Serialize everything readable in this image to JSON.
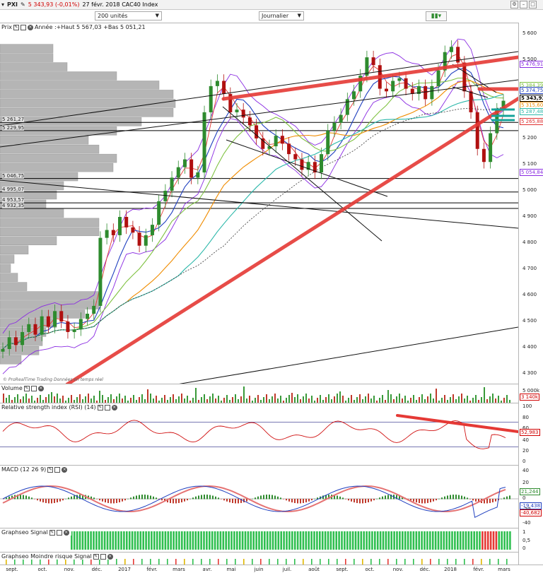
{
  "toolbar": {
    "symbol": "PXI",
    "quote": "5 343,93 (-0,01%)",
    "date_index": "27 févr. 2018 CAC40 Index",
    "units_select": "200 unités",
    "period_select": "Journalier"
  },
  "price_panel": {
    "title": "Prix",
    "year_info": "Année :+Haut 5 567,03 +Bas 5 051,21",
    "credit": "© ProRealTime Trading Données en temps réel"
  },
  "volume_panel": {
    "title": "Volume",
    "ticks": [
      "5 000k"
    ],
    "tag": "3 140k"
  },
  "rsi_panel": {
    "title": "Relative strength index (RSI) (14)",
    "ticks": [
      "100",
      "80",
      "60",
      "40",
      "20",
      "0"
    ],
    "tag": "52,983"
  },
  "macd_panel": {
    "title": "MACD (12 26 9)",
    "ticks": [
      "40",
      "20",
      "0",
      "-20",
      "-40"
    ],
    "tags": [
      "21,244",
      "-19,438",
      "-40,682"
    ]
  },
  "signal_panel": {
    "title": "Graphseo Signal",
    "ticks": [
      "1",
      "0,5",
      "0"
    ]
  },
  "risk_panel": {
    "title": "Graphseo Moindre risque Signal"
  },
  "chart_data": {
    "type": "candlestick",
    "price_axis": {
      "ticks": [
        "5 600",
        "5 500",
        "5 400",
        "5 300",
        "5 200",
        "5 100",
        "5 000",
        "4 900",
        "4 800",
        "4 700",
        "4 600",
        "4 500",
        "4 400",
        "4 300"
      ],
      "ylim": [
        4260,
        5640
      ]
    },
    "x_labels": [
      "sept.",
      "oct.",
      "nov.",
      "déc.",
      "2017",
      "févr.",
      "mars",
      "avr.",
      "mai",
      "juin",
      "juil.",
      "août",
      "sept.",
      "oct.",
      "nov.",
      "déc.",
      "2018",
      "févr.",
      "mars"
    ],
    "horizontal_levels": [
      {
        "label": "5 261,27",
        "value": 5261.27
      },
      {
        "label": "5 229,95",
        "value": 5229.95
      },
      {
        "label": "5 046,75",
        "value": 5046.75
      },
      {
        "label": "4 995,07",
        "value": 4995.07
      },
      {
        "label": "4 953,57",
        "value": 4953.57
      },
      {
        "label": "4 932,35",
        "value": 4932.35
      }
    ],
    "price_tags": [
      {
        "label": "5 476,91",
        "value": 5476.91,
        "color": "#8a2be2"
      },
      {
        "label": "5 384,39",
        "value": 5384.39,
        "color": "#7fc241"
      },
      {
        "label": "5 374,75",
        "value": 5374.75,
        "color": "#1f3fbf"
      },
      {
        "label": "5 343,93",
        "value": 5343.93,
        "color": "#000000"
      },
      {
        "label": "5 315,60",
        "value": 5315.6,
        "color": "#f08c00"
      },
      {
        "label": "5 287,48",
        "value": 5287.48,
        "color": "#2ab7a9"
      },
      {
        "label": "5 265,88",
        "value": 5265.88,
        "color": "#e03030"
      },
      {
        "label": "5 054,84",
        "value": 5054.84,
        "color": "#8a2be2"
      }
    ],
    "close_series": [
      4395,
      4440,
      4410,
      4460,
      4490,
      4450,
      4520,
      4480,
      4540,
      4500,
      4460,
      4470,
      4510,
      4530,
      4560,
      4820,
      4850,
      4830,
      4900,
      4860,
      4840,
      4790,
      4830,
      4870,
      4960,
      5000,
      5050,
      5090,
      5120,
      5050,
      5070,
      5300,
      5400,
      5420,
      5370,
      5300,
      5310,
      5280,
      5250,
      5200,
      5160,
      5170,
      5210,
      5180,
      5140,
      5120,
      5080,
      5110,
      5070,
      5140,
      5230,
      5260,
      5290,
      5350,
      5380,
      5440,
      5510,
      5480,
      5390,
      5380,
      5420,
      5430,
      5390,
      5370,
      5400,
      5350,
      5400,
      5460,
      5530,
      5550,
      5490,
      5380,
      5300,
      5160,
      5110,
      5220,
      5310,
      5344
    ],
    "colors": {
      "up": "#2e8b2e",
      "down": "#b01010",
      "trendline": "#e53935",
      "ma_fast": "#e53935",
      "ma_blue": "#1f3fbf",
      "ma_green": "#7fc241",
      "ma_orange": "#f08c00",
      "ma_cyan": "#2ab7a9",
      "bollinger": "#8a2be2"
    }
  }
}
